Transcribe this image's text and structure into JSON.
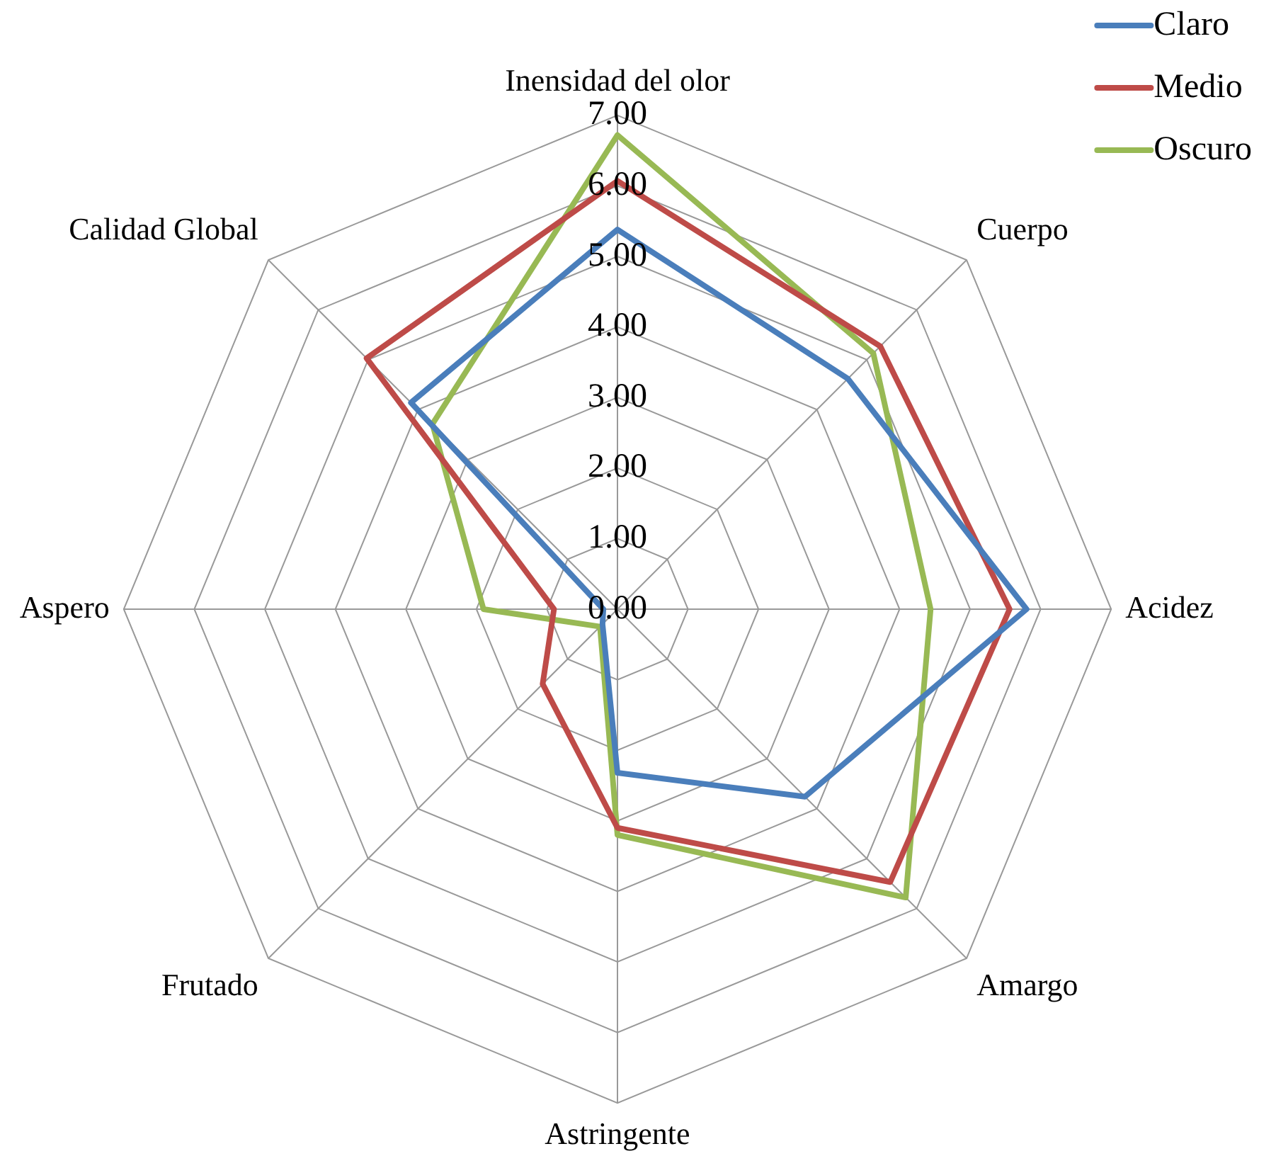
{
  "chart_data": {
    "type": "radar",
    "categories": [
      "Inensidad del olor",
      "Cuerpo",
      "Acidez",
      "Amargo",
      "Astringente",
      "Frutado",
      "Aspero",
      "Calidad Global"
    ],
    "series": [
      {
        "name": "Claro",
        "color": "#4a7ebb",
        "values": [
          5.38,
          4.62,
          5.8,
          3.76,
          2.32,
          0.3,
          0.2,
          4.14
        ]
      },
      {
        "name": "Medio",
        "color": "#be4b48",
        "values": [
          6.07,
          5.27,
          5.56,
          5.47,
          3.1,
          1.5,
          0.9,
          5.03
        ]
      },
      {
        "name": "Oscuro",
        "color": "#98b954",
        "values": [
          6.72,
          5.13,
          4.44,
          5.78,
          3.2,
          0.35,
          1.9,
          3.71
        ]
      }
    ],
    "ylim": [
      0,
      7
    ],
    "yticks": [
      {
        "value": 0,
        "label": "0.00"
      },
      {
        "value": 1,
        "label": "1.00"
      },
      {
        "value": 2,
        "label": "2.00"
      },
      {
        "value": 3,
        "label": "3.00"
      },
      {
        "value": 4,
        "label": "4.00"
      },
      {
        "value": 5,
        "label": "5.00"
      },
      {
        "value": 6,
        "label": "6.00"
      },
      {
        "value": 7,
        "label": "7.00"
      }
    ],
    "grid": true,
    "legend": "top right",
    "marker": "none"
  }
}
